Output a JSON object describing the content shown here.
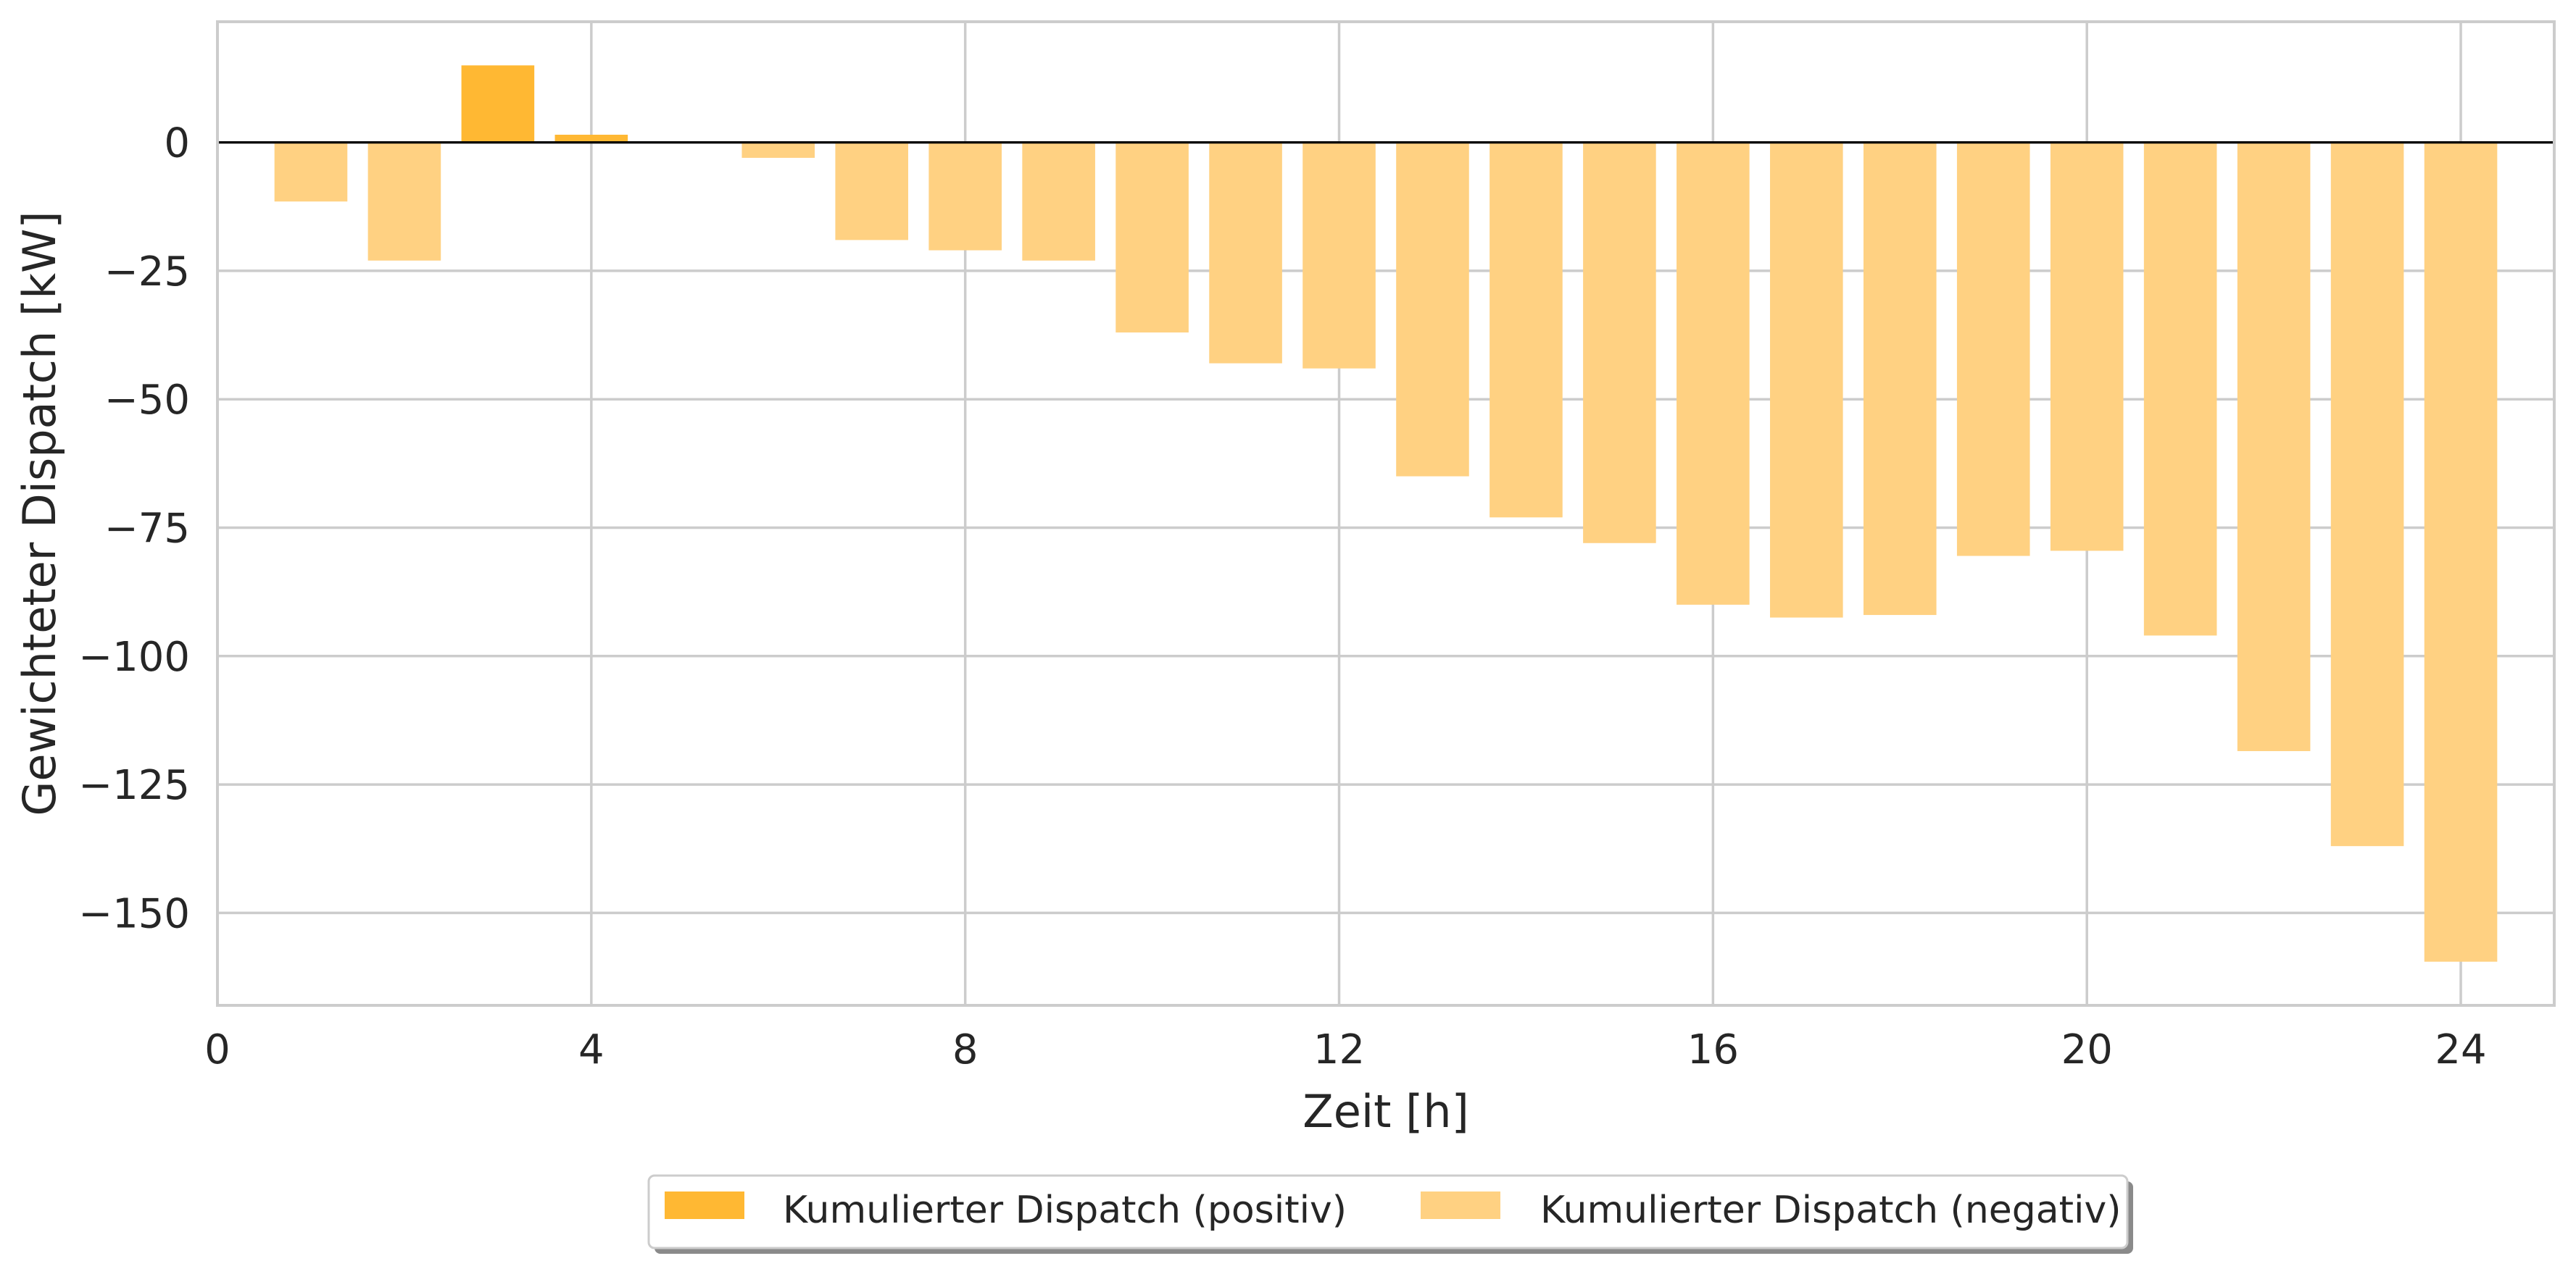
{
  "chart_data": {
    "type": "bar",
    "title": "",
    "xlabel": "Zeit [h]",
    "ylabel": "Gewichteter Dispatch [kW]",
    "xlim": [
      0,
      25
    ],
    "ylim": [
      -168,
      23.5
    ],
    "xticks": [
      0,
      4,
      8,
      12,
      16,
      20,
      24
    ],
    "yticks": [
      0,
      -25,
      -50,
      -75,
      -100,
      -125,
      -150
    ],
    "grid": true,
    "legend_position": "bottom-center-outside",
    "x": [
      1,
      2,
      3,
      4,
      5,
      6,
      7,
      8,
      9,
      10,
      11,
      12,
      13,
      14,
      15,
      16,
      17,
      18,
      19,
      20,
      21,
      22,
      23,
      24
    ],
    "series": [
      {
        "name": "Kumulierter Dispatch (positiv)",
        "color": "#FFB833",
        "values": [
          0,
          0,
          15,
          1.5,
          0,
          0,
          0,
          0,
          0,
          0,
          0,
          0,
          0,
          0,
          0,
          0,
          0,
          0,
          0,
          0,
          0,
          0,
          0,
          0
        ]
      },
      {
        "name": "Kumulierter Dispatch (negativ)",
        "color": "#FFD182",
        "values": [
          -11.5,
          -23,
          0,
          0,
          0,
          -3,
          -19,
          -21,
          -23,
          -37,
          -43,
          -44,
          -65,
          -73,
          -78,
          -90,
          -92.5,
          -92,
          -80.5,
          -79.5,
          -96,
          -118.5,
          -137,
          -159.5
        ]
      }
    ]
  }
}
